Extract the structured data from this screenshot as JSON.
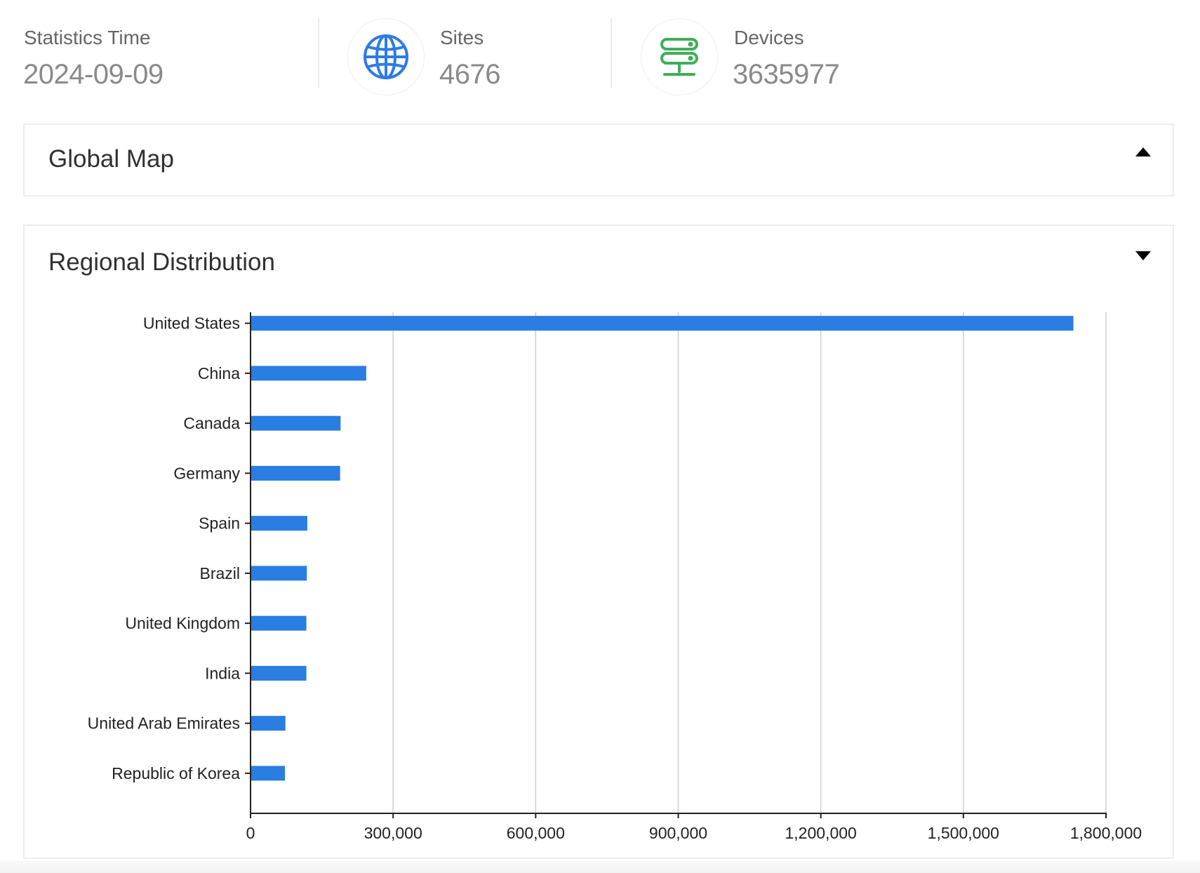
{
  "stats": {
    "statistics_time": {
      "label": "Statistics Time",
      "value": "2024-09-09"
    },
    "sites": {
      "label": "Sites",
      "value": "4676",
      "icon": "globe-icon",
      "color": "#2f7ae5"
    },
    "devices": {
      "label": "Devices",
      "value": "3635977",
      "icon": "server-icon",
      "color": "#3fae5a"
    }
  },
  "panels": {
    "global_map": {
      "title": "Global Map",
      "toggle": "collapse-caret-up"
    },
    "regional_distribution": {
      "title": "Regional Distribution",
      "toggle": "expand-caret-down"
    }
  },
  "chart_data": {
    "type": "bar",
    "orientation": "horizontal",
    "categories": [
      "United States",
      "China",
      "Canada",
      "Germany",
      "Spain",
      "Brazil",
      "United Kingdom",
      "India",
      "United Arab Emirates",
      "Republic of Korea"
    ],
    "values": [
      1730000,
      242000,
      188000,
      187000,
      118000,
      117000,
      116000,
      116000,
      72000,
      71000
    ],
    "xlim": [
      0,
      1800000
    ],
    "x_ticks": [
      0,
      300000,
      600000,
      900000,
      1200000,
      1500000,
      1800000
    ],
    "x_tick_labels": [
      "0",
      "300,000",
      "600,000",
      "900,000",
      "1,200,000",
      "1,500,000",
      "1,800,000"
    ],
    "grid": "vertical",
    "bar_color": "#2a7de1"
  }
}
